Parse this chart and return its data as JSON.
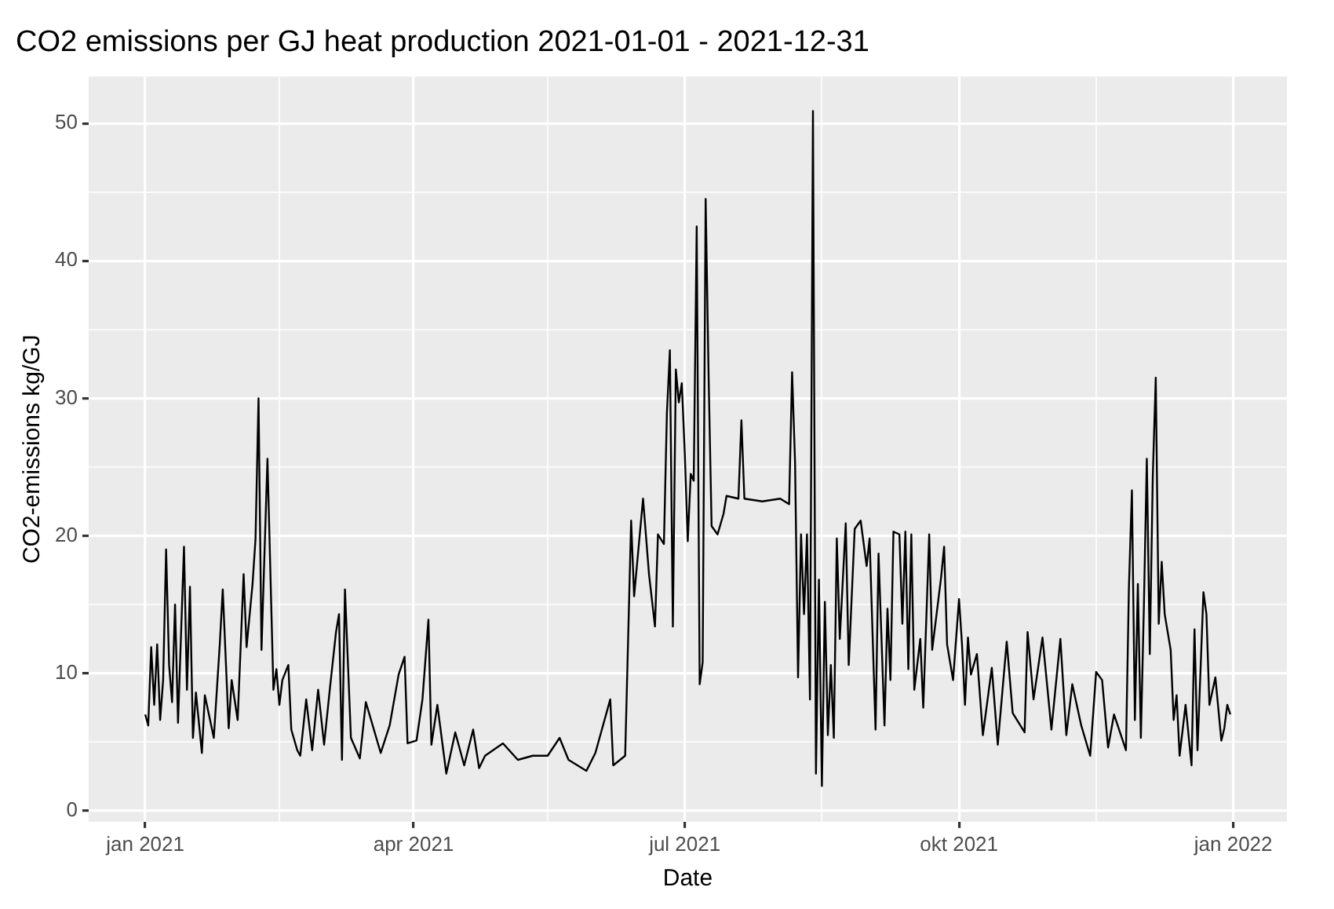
{
  "chart_data": {
    "type": "line",
    "title": "CO2 emissions per GJ heat production 2021-01-01 - 2021-12-31",
    "xlabel": "Date",
    "ylabel": "CO2-emissions kg/GJ",
    "xlim": [
      "2020-12-13",
      "2022-01-19"
    ],
    "xticks": [
      {
        "value": "2021-01-01",
        "label": "jan 2021"
      },
      {
        "value": "2021-02-15",
        "label": null
      },
      {
        "value": "2021-04-01",
        "label": "apr 2021"
      },
      {
        "value": "2021-05-16",
        "label": null
      },
      {
        "value": "2021-07-01",
        "label": "jul 2021"
      },
      {
        "value": "2021-08-16",
        "label": null
      },
      {
        "value": "2021-10-01",
        "label": "okt 2021"
      },
      {
        "value": "2021-11-16",
        "label": null
      },
      {
        "value": "2022-01-01",
        "label": "jan 2022"
      }
    ],
    "ylim": [
      -0.8,
      53.4
    ],
    "yticks": [
      0,
      {
        "value": 5,
        "label": null
      },
      10,
      {
        "value": 15,
        "label": null
      },
      20,
      {
        "value": 25,
        "label": null
      },
      30,
      {
        "value": 35,
        "label": null
      },
      40,
      {
        "value": 45,
        "label": null
      },
      50
    ],
    "grid": true,
    "legend": false,
    "marker": "none",
    "line_style": "solid",
    "series": [
      {
        "color": "#000000",
        "x": [
          "2021-01-01",
          "2021-01-02",
          "2021-01-03",
          "2021-01-04",
          "2021-01-05",
          "2021-01-06",
          "2021-01-07",
          "2021-01-08",
          "2021-01-09",
          "2021-01-10",
          "2021-01-11",
          "2021-01-12",
          "2021-01-14",
          "2021-01-15",
          "2021-01-16",
          "2021-01-17",
          "2021-01-18",
          "2021-01-20",
          "2021-01-21",
          "2021-01-24",
          "2021-01-26",
          "2021-01-27",
          "2021-01-29",
          "2021-01-30",
          "2021-02-01",
          "2021-02-03",
          "2021-02-04",
          "2021-02-06",
          "2021-02-07",
          "2021-02-08",
          "2021-02-09",
          "2021-02-10",
          "2021-02-11",
          "2021-02-12",
          "2021-02-13",
          "2021-02-14",
          "2021-02-15",
          "2021-02-16",
          "2021-02-18",
          "2021-02-19",
          "2021-02-21",
          "2021-02-22",
          "2021-02-24",
          "2021-02-26",
          "2021-02-28",
          "2021-03-02",
          "2021-03-04",
          "2021-03-06",
          "2021-03-07",
          "2021-03-08",
          "2021-03-09",
          "2021-03-11",
          "2021-03-14",
          "2021-03-16",
          "2021-03-21",
          "2021-03-24",
          "2021-03-27",
          "2021-03-29",
          "2021-03-30",
          "2021-04-02",
          "2021-04-04",
          "2021-04-06",
          "2021-04-07",
          "2021-04-09",
          "2021-04-12",
          "2021-04-15",
          "2021-04-18",
          "2021-04-21",
          "2021-04-23",
          "2021-04-25",
          "2021-05-01",
          "2021-05-06",
          "2021-05-11",
          "2021-05-16",
          "2021-05-20",
          "2021-05-23",
          "2021-05-29",
          "2021-06-01",
          "2021-06-06",
          "2021-06-07",
          "2021-06-11",
          "2021-06-13",
          "2021-06-14",
          "2021-06-17",
          "2021-06-19",
          "2021-06-21",
          "2021-06-22",
          "2021-06-24",
          "2021-06-25",
          "2021-06-26",
          "2021-06-27",
          "2021-06-28",
          "2021-06-29",
          "2021-06-30",
          "2021-07-01",
          "2021-07-02",
          "2021-07-03",
          "2021-07-04",
          "2021-07-05",
          "2021-07-06",
          "2021-07-07",
          "2021-07-08",
          "2021-07-09",
          "2021-07-10",
          "2021-07-12",
          "2021-07-14",
          "2021-07-15",
          "2021-07-19",
          "2021-07-20",
          "2021-07-21",
          "2021-07-27",
          "2021-08-02",
          "2021-08-05",
          "2021-08-06",
          "2021-08-07",
          "2021-08-08",
          "2021-08-09",
          "2021-08-10",
          "2021-08-11",
          "2021-08-12",
          "2021-08-13",
          "2021-08-14",
          "2021-08-15",
          "2021-08-16",
          "2021-08-17",
          "2021-08-18",
          "2021-08-19",
          "2021-08-20",
          "2021-08-21",
          "2021-08-22",
          "2021-08-24",
          "2021-08-25",
          "2021-08-27",
          "2021-08-29",
          "2021-08-31",
          "2021-09-01",
          "2021-09-03",
          "2021-09-04",
          "2021-09-06",
          "2021-09-07",
          "2021-09-08",
          "2021-09-09",
          "2021-09-11",
          "2021-09-12",
          "2021-09-13",
          "2021-09-14",
          "2021-09-15",
          "2021-09-16",
          "2021-09-18",
          "2021-09-19",
          "2021-09-21",
          "2021-09-22",
          "2021-09-25",
          "2021-09-26",
          "2021-09-27",
          "2021-09-29",
          "2021-10-01",
          "2021-10-02",
          "2021-10-03",
          "2021-10-04",
          "2021-10-05",
          "2021-10-07",
          "2021-10-09",
          "2021-10-12",
          "2021-10-14",
          "2021-10-17",
          "2021-10-19",
          "2021-10-23",
          "2021-10-24",
          "2021-10-26",
          "2021-10-29",
          "2021-11-01",
          "2021-11-04",
          "2021-11-06",
          "2021-11-08",
          "2021-11-11",
          "2021-11-14",
          "2021-11-16",
          "2021-11-18",
          "2021-11-20",
          "2021-11-22",
          "2021-11-26",
          "2021-11-27",
          "2021-11-28",
          "2021-11-29",
          "2021-11-30",
          "2021-12-01",
          "2021-12-02",
          "2021-12-03",
          "2021-12-04",
          "2021-12-05",
          "2021-12-06",
          "2021-12-07",
          "2021-12-08",
          "2021-12-09",
          "2021-12-11",
          "2021-12-12",
          "2021-12-13",
          "2021-12-14",
          "2021-12-16",
          "2021-12-18",
          "2021-12-19",
          "2021-12-20",
          "2021-12-22",
          "2021-12-23",
          "2021-12-24",
          "2021-12-26",
          "2021-12-28",
          "2021-12-29",
          "2021-12-30",
          "2021-12-31"
        ],
        "values": [
          7.0,
          6.2,
          11.9,
          7.7,
          12.1,
          6.6,
          9.5,
          19.0,
          10.6,
          7.9,
          15.0,
          6.4,
          19.2,
          8.8,
          16.3,
          5.3,
          8.6,
          4.2,
          8.4,
          5.3,
          12.1,
          16.1,
          6.0,
          9.5,
          6.6,
          17.2,
          11.9,
          16.5,
          19.8,
          30.0,
          11.7,
          18.7,
          25.6,
          17.2,
          8.8,
          10.3,
          7.7,
          9.5,
          10.6,
          5.9,
          4.4,
          4.0,
          8.1,
          4.4,
          8.8,
          4.8,
          9.0,
          13.0,
          14.3,
          3.7,
          16.1,
          5.3,
          3.8,
          7.9,
          4.2,
          6.2,
          9.9,
          11.2,
          4.9,
          5.1,
          8.1,
          13.9,
          4.8,
          7.7,
          2.7,
          5.7,
          3.3,
          5.9,
          3.1,
          4.0,
          4.9,
          3.7,
          4.0,
          4.0,
          5.3,
          3.7,
          2.9,
          4.2,
          8.1,
          3.3,
          4.0,
          21.1,
          15.6,
          22.7,
          17.2,
          13.4,
          20.1,
          19.4,
          28.9,
          33.5,
          13.4,
          32.1,
          29.7,
          31.1,
          26.0,
          19.6,
          24.5,
          24.0,
          42.5,
          9.2,
          10.8,
          44.5,
          31.5,
          20.7,
          20.1,
          21.6,
          22.9,
          22.7,
          28.4,
          22.7,
          22.5,
          22.7,
          22.3,
          31.9,
          25.3,
          9.7,
          20.1,
          14.3,
          20.1,
          8.1,
          50.9,
          2.7,
          16.8,
          1.8,
          15.2,
          5.5,
          10.6,
          5.3,
          19.8,
          12.5,
          20.9,
          10.6,
          20.5,
          21.1,
          17.8,
          19.8,
          5.9,
          18.7,
          6.2,
          14.7,
          9.5,
          20.3,
          20.1,
          13.6,
          20.3,
          10.3,
          20.1,
          8.8,
          12.5,
          7.5,
          20.1,
          11.7,
          17.0,
          19.2,
          12.1,
          9.5,
          15.4,
          12.1,
          7.7,
          12.6,
          9.9,
          11.4,
          5.5,
          10.4,
          4.8,
          12.3,
          7.1,
          5.7,
          13.0,
          8.1,
          12.6,
          5.9,
          12.5,
          5.5,
          9.2,
          6.2,
          4.0,
          10.1,
          9.5,
          4.6,
          7.0,
          4.4,
          16.3,
          23.3,
          6.6,
          16.5,
          5.3,
          14.7,
          25.6,
          11.4,
          24.3,
          31.5,
          13.6,
          18.1,
          14.3,
          11.7,
          6.6,
          8.4,
          4.0,
          7.7,
          3.3,
          13.2,
          4.4,
          15.9,
          14.3,
          7.7,
          9.7,
          5.1,
          6.0,
          7.7,
          7.0
        ]
      }
    ]
  }
}
